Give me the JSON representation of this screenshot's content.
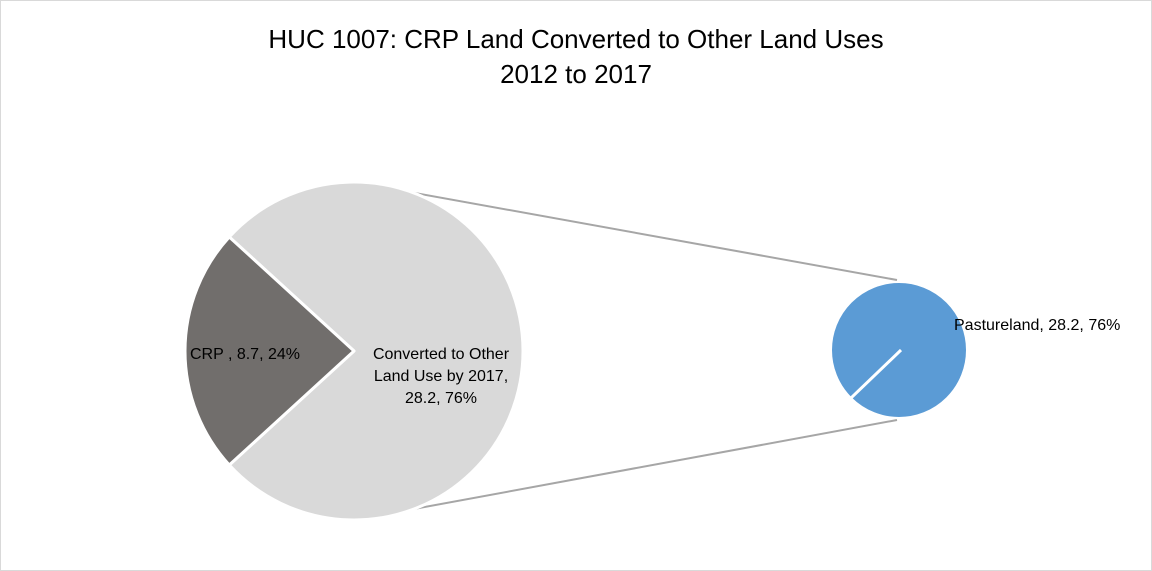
{
  "chart_data": {
    "type": "pie",
    "subtype": "pie-of-pie",
    "title_lines": [
      "HUC 1007: CRP Land Converted to Other Land Uses",
      "2012 to 2017"
    ],
    "primary": {
      "slices": [
        {
          "name": "CRP",
          "value": 8.7,
          "percent": 24,
          "label_lines": [
            "CRP , 8.7, 24%"
          ],
          "color": "#716e6c"
        },
        {
          "name": "Converted to Other Land Use by 2017",
          "value": 28.2,
          "percent": 76,
          "label_lines": [
            "Converted to Other",
            "Land Use by 2017,",
            "28.2, 76%"
          ],
          "color": "#d9d9d9"
        }
      ]
    },
    "secondary": {
      "source_slice": "Converted to Other Land Use by 2017",
      "slices": [
        {
          "name": "Pastureland",
          "value": 28.2,
          "percent": 76,
          "label_lines": [
            "Pastureland, 28.2, 76%"
          ],
          "color": "#5b9bd5"
        }
      ]
    },
    "connector_color": "#a6a6a6",
    "legend": "none"
  }
}
